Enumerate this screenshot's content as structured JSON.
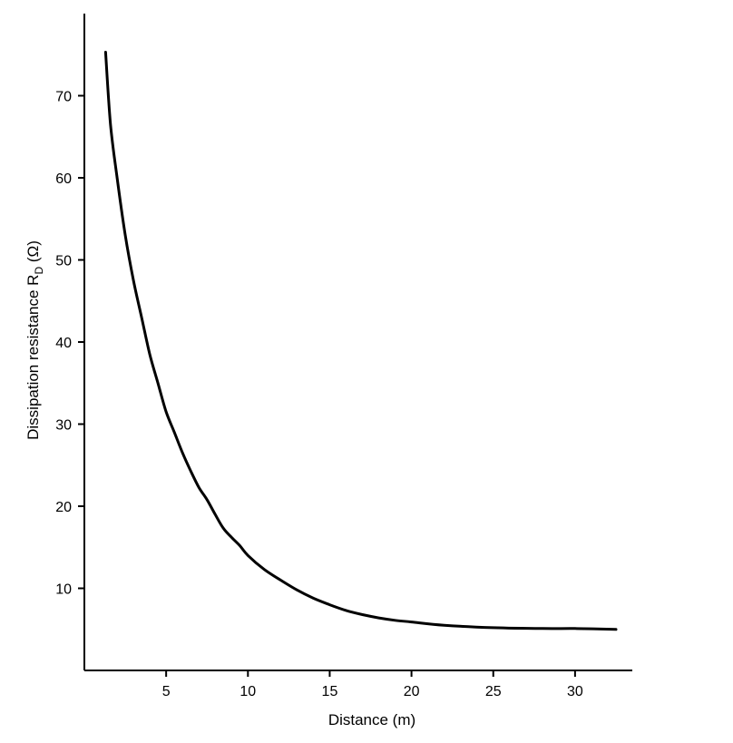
{
  "chart_data": {
    "type": "line",
    "xlabel": "Distance (m)",
    "ylabel_main": "Dissipation resistance R",
    "ylabel_sub": "D",
    "ylabel_unit": " (Ω)",
    "xlim": [
      0,
      33.5
    ],
    "ylim": [
      0,
      80
    ],
    "x_ticks": [
      5,
      10,
      15,
      20,
      25,
      30
    ],
    "y_ticks": [
      10,
      20,
      30,
      40,
      50,
      60,
      70
    ],
    "grid": false,
    "series": [
      {
        "color": "#000000",
        "points": [
          [
            1.3,
            75.3
          ],
          [
            1.6,
            66.5
          ],
          [
            2.0,
            60.0
          ],
          [
            2.5,
            53.0
          ],
          [
            3.0,
            47.5
          ],
          [
            3.5,
            43.0
          ],
          [
            4.0,
            38.5
          ],
          [
            4.5,
            35.0
          ],
          [
            5.0,
            31.5
          ],
          [
            5.5,
            29.0
          ],
          [
            6.0,
            26.5
          ],
          [
            6.5,
            24.3
          ],
          [
            7.0,
            22.3
          ],
          [
            7.5,
            20.8
          ],
          [
            8.0,
            19.0
          ],
          [
            8.5,
            17.3
          ],
          [
            9.0,
            16.2
          ],
          [
            9.5,
            15.2
          ],
          [
            10.0,
            14.0
          ],
          [
            11.0,
            12.3
          ],
          [
            12.0,
            11.0
          ],
          [
            13.0,
            9.8
          ],
          [
            14.0,
            8.8
          ],
          [
            15.0,
            8.0
          ],
          [
            16.0,
            7.3
          ],
          [
            17.0,
            6.8
          ],
          [
            18.0,
            6.4
          ],
          [
            19.0,
            6.1
          ],
          [
            20.0,
            5.9
          ],
          [
            22.0,
            5.5
          ],
          [
            25.0,
            5.2
          ],
          [
            28.0,
            5.1
          ],
          [
            30.0,
            5.1
          ],
          [
            32.5,
            5.0
          ]
        ]
      }
    ]
  }
}
